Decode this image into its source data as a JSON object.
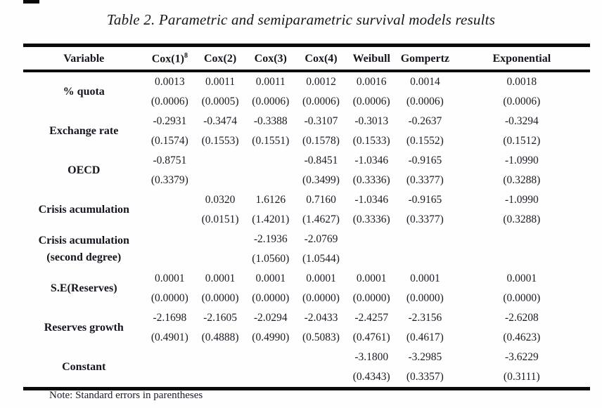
{
  "title": "Table 2. Parametric and semiparametric survival models results",
  "note": "Note: Standard errors in parentheses",
  "chart_data": {
    "type": "table",
    "title": "Table 2. Parametric and semiparametric survival models results",
    "note": "Note: Standard errors in parentheses",
    "columns": [
      "Variable",
      "Cox(1)",
      "Cox(2)",
      "Cox(3)",
      "Cox(4)",
      "Weibull",
      "Gompertz",
      "Exponential"
    ]
  },
  "table": {
    "headers": [
      {
        "label": "Variable"
      },
      {
        "label": "Cox(1)",
        "sup": "8"
      },
      {
        "label": "Cox(2)"
      },
      {
        "label": "Cox(3)"
      },
      {
        "label": "Cox(4)"
      },
      {
        "label": "Weibull"
      },
      {
        "label": "Gompertz"
      },
      {
        "label": "Exponential"
      }
    ],
    "rows": [
      {
        "label_lines": [
          "% quota"
        ],
        "coef": [
          "0.0013",
          "0.0011",
          "0.0011",
          "0.0012",
          "0.0016",
          "0.0014",
          "0.0018"
        ],
        "se": [
          "(0.0006)",
          "(0.0005)",
          "(0.0006)",
          "(0.0006)",
          "(0.0006)",
          "(0.0006)",
          "(0.0006)"
        ]
      },
      {
        "label_lines": [
          "Exchange rate"
        ],
        "coef": [
          "-0.2931",
          "-0.3474",
          "-0.3388",
          "-0.3107",
          "-0.3013",
          "-0.2637",
          "-0.3294"
        ],
        "se": [
          "(0.1574)",
          "(0.1553)",
          "(0.1551)",
          "(0.1578)",
          "(0.1533)",
          "(0.1552)",
          "(0.1512)"
        ]
      },
      {
        "label_lines": [
          "OECD"
        ],
        "coef": [
          "-0.8751",
          "",
          "",
          "-0.8451",
          "-1.0346",
          "-0.9165",
          "-1.0990"
        ],
        "se": [
          "(0.3379)",
          "",
          "",
          "(0.3499)",
          "(0.3336)",
          "(0.3377)",
          "(0.3288)"
        ]
      },
      {
        "label_lines": [
          "Crisis acumulation"
        ],
        "coef": [
          "",
          "0.0320",
          "1.6126",
          "0.7160",
          "-1.0346",
          "-0.9165",
          "-1.0990"
        ],
        "se": [
          "",
          "(0.0151)",
          "(1.4201)",
          "(1.4627)",
          "(0.3336)",
          "(0.3377)",
          "(0.3288)"
        ]
      },
      {
        "label_lines": [
          "Crisis acumulation",
          "(second degree)"
        ],
        "coef": [
          "",
          "",
          "-2.1936",
          "-2.0769",
          "",
          "",
          ""
        ],
        "se": [
          "",
          "",
          "(1.0560)",
          "(1.0544)",
          "",
          "",
          ""
        ]
      },
      {
        "label_lines": [
          "S.E(Reserves)"
        ],
        "coef": [
          "0.0001",
          "0.0001",
          "0.0001",
          "0.0001",
          "0.0001",
          "0.0001",
          "0.0001"
        ],
        "se": [
          "(0.0000)",
          "(0.0000)",
          "(0.0000)",
          "(0.0000)",
          "(0.0000)",
          "(0.0000)",
          "(0.0000)"
        ]
      },
      {
        "label_lines": [
          "Reserves growth"
        ],
        "coef": [
          "-2.1698",
          "-2.1605",
          "-2.0294",
          "-2.0433",
          "-2.4257",
          "-2.3156",
          "-2.6208"
        ],
        "se": [
          "(0.4901)",
          "(0.4888)",
          "(0.4990)",
          "(0.5083)",
          "(0.4761)",
          "(0.4617)",
          "(0.4623)"
        ]
      },
      {
        "label_lines": [
          "Constant"
        ],
        "coef": [
          "",
          "",
          "",
          "",
          "-3.1800",
          "-3.2985",
          "-3.6229"
        ],
        "se": [
          "",
          "",
          "",
          "",
          "(0.4343)",
          "(0.3357)",
          "(0.3111)"
        ]
      }
    ]
  }
}
